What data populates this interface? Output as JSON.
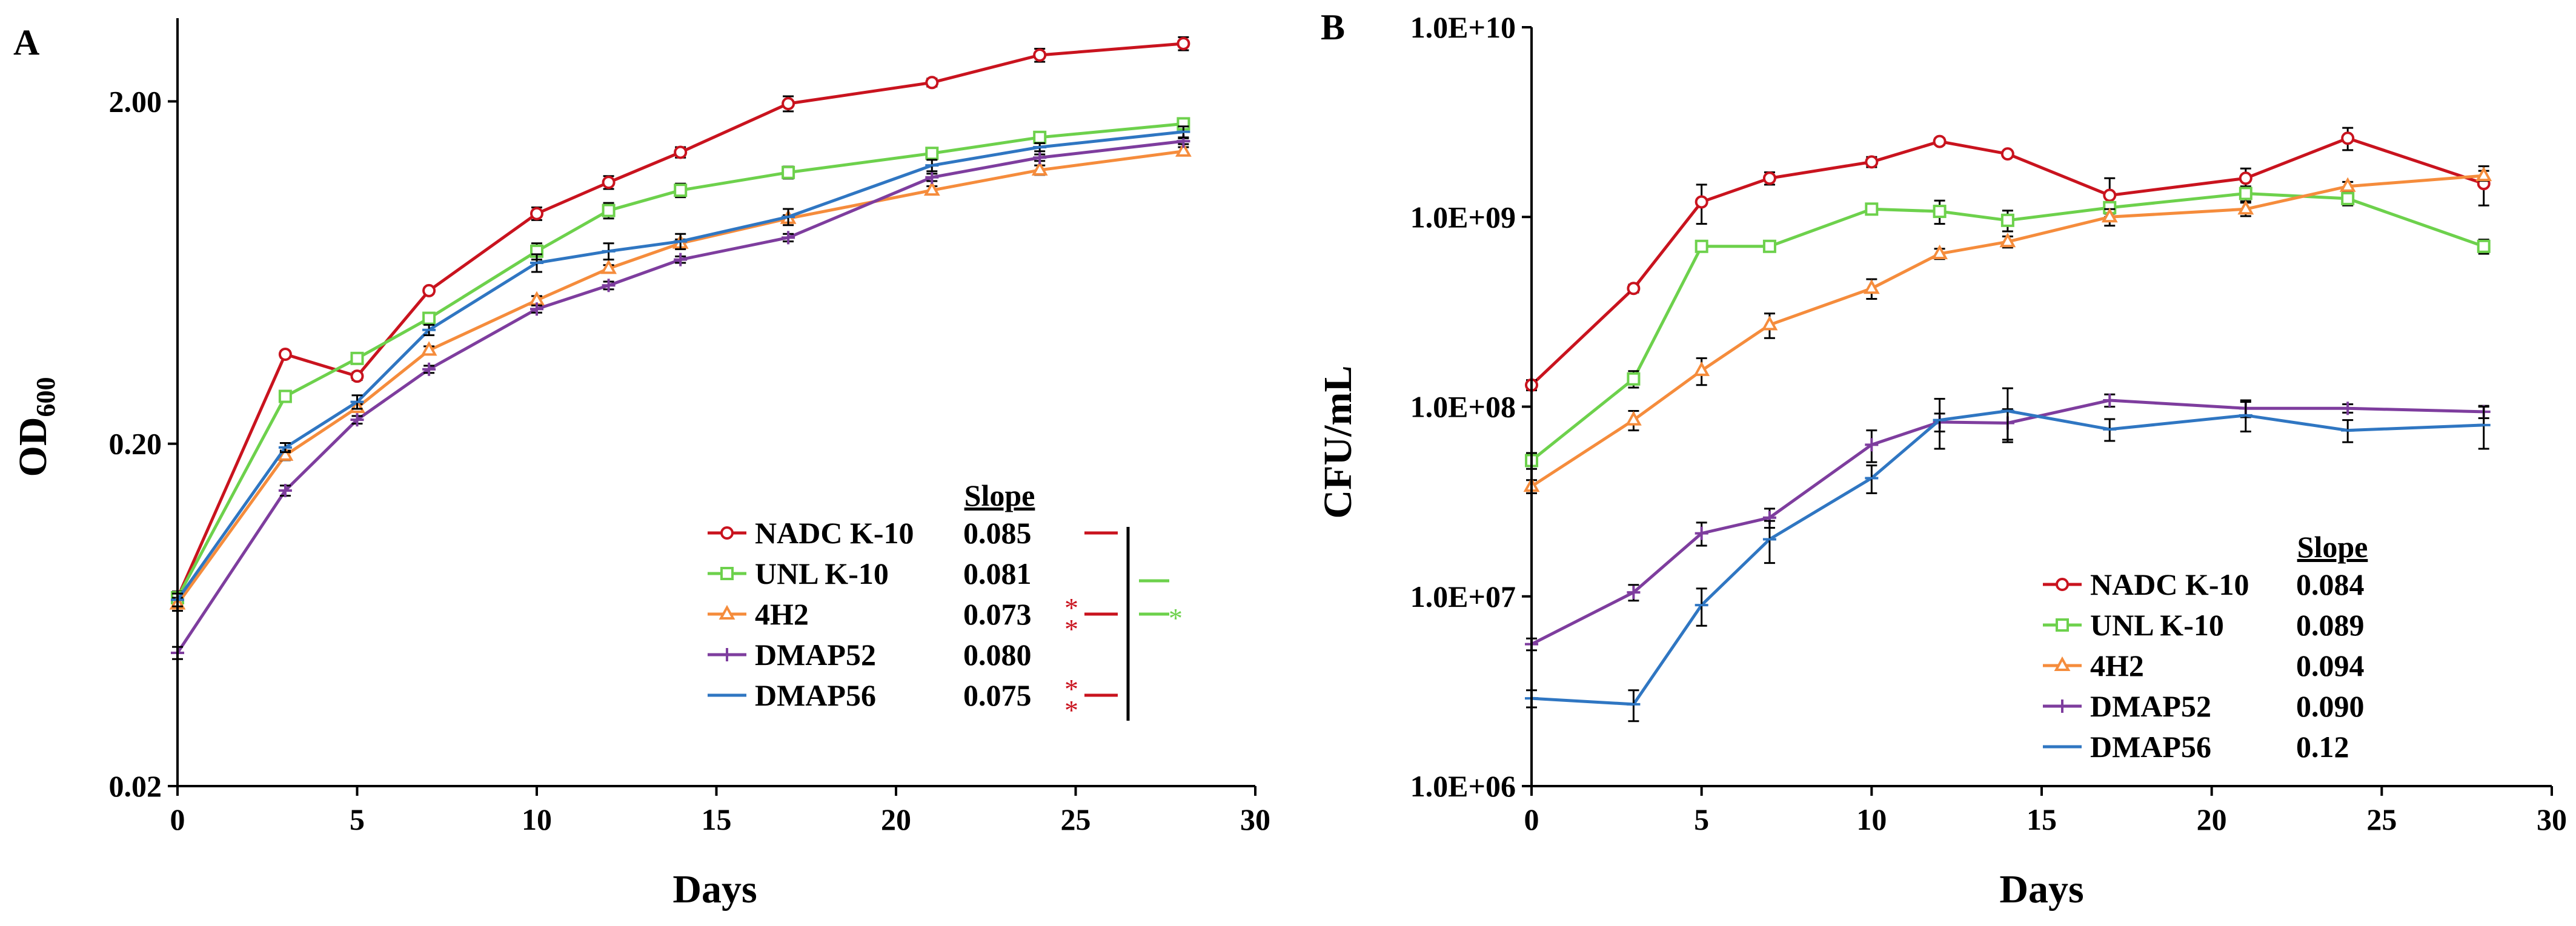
{
  "chart_data": [
    {
      "panel_label": "A",
      "type": "line",
      "yscale": "log",
      "xlabel": "Days",
      "ylabel_main": "OD",
      "ylabel_sub": "600",
      "xlim": [
        0,
        30
      ],
      "ylim": [
        0.02,
        3.5
      ],
      "xticks": [
        0,
        5,
        10,
        15,
        20,
        25,
        30
      ],
      "xtick_labels": [
        "0",
        "5",
        "10",
        "15",
        "20",
        "25",
        "30"
      ],
      "yticks": [
        0.02,
        0.2,
        2.0
      ],
      "ytick_labels": [
        "0.02",
        "0.20",
        "2.00"
      ],
      "x": [
        0,
        3,
        5,
        7,
        10,
        12,
        14,
        17,
        21,
        24,
        28
      ],
      "legend_title": "Slope",
      "series": [
        {
          "name": "NADC K-10",
          "color": "#c9131e",
          "marker": "circle",
          "slope": "0.085",
          "values": [
            0.071,
            0.365,
            0.315,
            0.56,
            0.94,
            1.16,
            1.42,
            1.97,
            2.27,
            2.73,
            2.95
          ],
          "errors": [
            0.003,
            0.008,
            0.008,
            0.012,
            0.04,
            0.05,
            0.05,
            0.1,
            0.06,
            0.12,
            0.13
          ]
        },
        {
          "name": "UNL K-10",
          "color": "#6dd14c",
          "marker": "square",
          "slope": "0.081",
          "values": [
            0.071,
            0.275,
            0.355,
            0.465,
            0.73,
            0.96,
            1.1,
            1.24,
            1.41,
            1.57,
            1.72
          ],
          "errors": [
            0.003,
            0.008,
            0.008,
            0.015,
            0.04,
            0.05,
            0.05,
            0.05,
            0.04,
            0.04,
            0.05
          ]
        },
        {
          "name": "4H2",
          "color": "#f58c3c",
          "marker": "triangle",
          "slope": "0.073",
          "values": [
            0.068,
            0.185,
            0.255,
            0.375,
            0.525,
            0.65,
            0.77,
            0.91,
            1.1,
            1.26,
            1.43
          ],
          "errors": [
            0.003,
            0.006,
            0.006,
            0.01,
            0.015,
            0.015,
            0.02,
            0.02,
            0.03,
            0.04,
            0.04
          ]
        },
        {
          "name": "DMAP52",
          "color": "#7e3d9e",
          "marker": "plus",
          "slope": "0.080",
          "values": [
            0.049,
            0.146,
            0.235,
            0.33,
            0.495,
            0.58,
            0.69,
            0.8,
            1.2,
            1.37,
            1.53
          ],
          "errors": [
            0.002,
            0.005,
            0.006,
            0.008,
            0.012,
            0.015,
            0.015,
            0.02,
            0.03,
            0.03,
            0.03
          ]
        },
        {
          "name": "DMAP56",
          "color": "#2f76c2",
          "marker": "dash",
          "slope": "0.075",
          "values": [
            0.07,
            0.195,
            0.265,
            0.43,
            0.675,
            0.73,
            0.78,
            0.92,
            1.3,
            1.47,
            1.63
          ],
          "errors": [
            0.003,
            0.006,
            0.012,
            0.015,
            0.04,
            0.04,
            0.04,
            0.05,
            0.05,
            0.04,
            0.06
          ]
        }
      ],
      "significance": [
        {
          "label": "*",
          "row": "4H2",
          "color": "#c9131e",
          "position": "left"
        },
        {
          "label": "*",
          "row": "4H2",
          "color": "#c9131e",
          "position": "left"
        },
        {
          "label": "*",
          "row": "4H2",
          "color": "#6dd14c",
          "position": "right"
        },
        {
          "label": "*",
          "row": "DMAP56",
          "color": "#c9131e",
          "position": "left"
        },
        {
          "label": "*",
          "row": "DMAP56",
          "color": "#c9131e",
          "position": "left"
        }
      ]
    },
    {
      "panel_label": "B",
      "type": "line",
      "yscale": "log",
      "xlabel": "Days",
      "ylabel": "CFU/mL",
      "xlim": [
        0,
        30
      ],
      "ylim": [
        1000000,
        10000000000
      ],
      "xticks": [
        0,
        5,
        10,
        15,
        20,
        25,
        30
      ],
      "xtick_labels": [
        "0",
        "5",
        "10",
        "15",
        "20",
        "25",
        "30"
      ],
      "yticks": [
        1000000,
        10000000,
        100000000,
        1000000000,
        10000000000
      ],
      "ytick_labels": [
        "1.0E+06",
        "1.0E+07",
        "1.0E+08",
        "1.0E+09",
        "1.0E+10"
      ],
      "x": [
        0,
        3,
        5,
        7,
        10,
        12,
        14,
        17,
        21,
        24,
        28
      ],
      "legend_title": "Slope",
      "series": [
        {
          "name": "NADC K-10",
          "color": "#c9131e",
          "marker": "circle",
          "slope": "0.084",
          "values": [
            130000000,
            420000000,
            1200000000,
            1600000000,
            1950000000,
            2500000000,
            2150000000,
            1300000000,
            1600000000,
            2600000000,
            1500000000
          ],
          "errors": [
            8000000,
            20000000,
            280000000,
            120000000,
            120000000,
            100000000,
            80000000,
            300000000,
            200000000,
            350000000,
            350000000
          ]
        },
        {
          "name": "UNL K-10",
          "color": "#6dd14c",
          "marker": "square",
          "slope": "0.089",
          "values": [
            52000000,
            140000000,
            700000000,
            700000000,
            1100000000,
            1070000000,
            960000000,
            1120000000,
            1330000000,
            1250000000,
            700000000
          ],
          "errors": [
            5000000,
            14000000,
            30000000,
            30000000,
            50000000,
            150000000,
            120000000,
            80000000,
            120000000,
            100000000,
            60000000
          ]
        },
        {
          "name": "4H2",
          "color": "#f58c3c",
          "marker": "triangle",
          "slope": "0.094",
          "values": [
            38000000,
            85000000,
            155000000,
            270000000,
            420000000,
            640000000,
            740000000,
            1000000000,
            1100000000,
            1450000000,
            1650000000
          ],
          "errors": [
            3000000,
            10000000,
            25000000,
            40000000,
            50000000,
            40000000,
            50000000,
            100000000,
            90000000,
            80000000,
            100000000
          ]
        },
        {
          "name": "DMAP52",
          "color": "#7e3d9e",
          "marker": "plus",
          "slope": "0.090",
          "values": [
            5600000,
            10500000,
            21500000,
            26000000,
            63000000,
            83000000,
            82000000,
            108000000,
            98000000,
            98000000,
            94000000
          ],
          "errors": [
            400000,
            1000000,
            3000000,
            3000000,
            12000000,
            9000000,
            15000000,
            8000000,
            10000000,
            5000000,
            7000000
          ]
        },
        {
          "name": "DMAP56",
          "color": "#2f76c2",
          "marker": "dash",
          "slope": "0.12",
          "values": [
            2900000,
            2700000,
            9000000,
            20000000,
            42000000,
            85000000,
            95000000,
            76000000,
            90000000,
            75000000,
            80000000
          ],
          "errors": [
            300000,
            500000,
            2000000,
            5000000,
            7000000,
            25000000,
            30000000,
            10000000,
            16000000,
            10000000,
            20000000
          ]
        }
      ]
    }
  ]
}
